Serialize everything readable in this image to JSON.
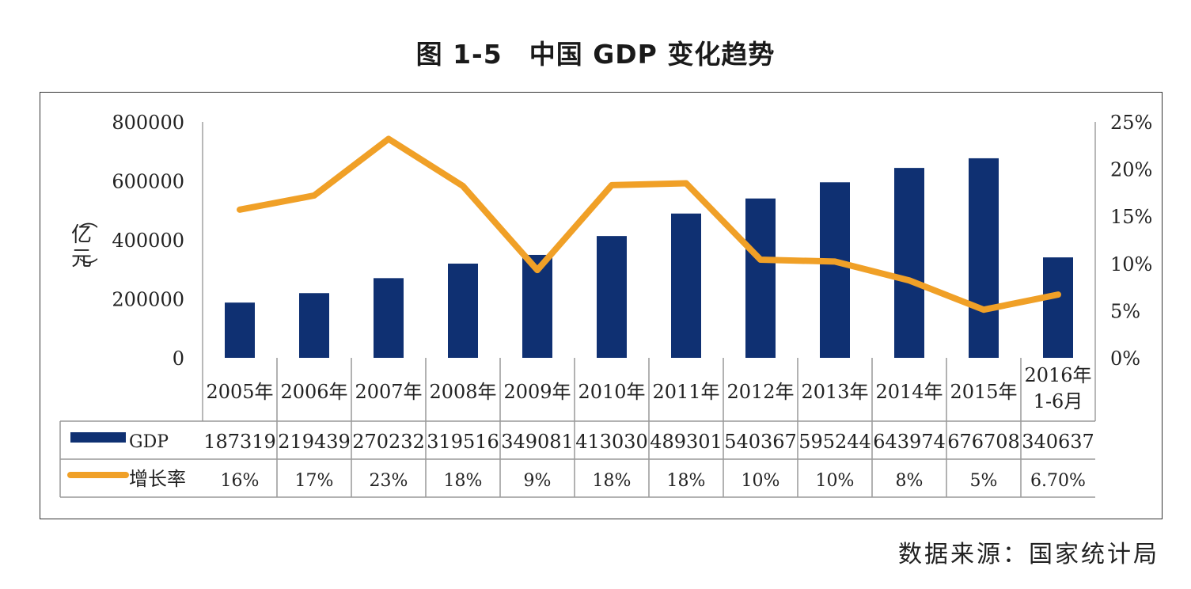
{
  "title": "图 1-5　中国 GDP 变化趋势",
  "source": "数据来源：国家统计局",
  "chart_data": {
    "type": "bar",
    "title": "图 1-5　中国 GDP 变化趋势",
    "xlabel": "",
    "ylabel": "（亿元）",
    "ylim": [
      0,
      800000
    ],
    "y2lim": [
      0,
      25
    ],
    "y_ticks": [
      "0",
      "200000",
      "400000",
      "600000",
      "800000"
    ],
    "y2_ticks": [
      "0%",
      "5%",
      "10%",
      "15%",
      "20%",
      "25%"
    ],
    "categories": [
      [
        "2005年"
      ],
      [
        "2006年"
      ],
      [
        "2007年"
      ],
      [
        "2008年"
      ],
      [
        "2009年"
      ],
      [
        "2010年"
      ],
      [
        "2011年"
      ],
      [
        "2012年"
      ],
      [
        "2013年"
      ],
      [
        "2014年"
      ],
      [
        "2015年"
      ],
      [
        "2016年",
        "1-6月"
      ]
    ],
    "series": [
      {
        "name": "GDP",
        "type": "bar",
        "axis": "left",
        "color": "#0f3072",
        "values": [
          187319,
          219439,
          270232,
          319516,
          349081,
          413030,
          489301,
          540367,
          595244,
          643974,
          676708,
          340637
        ],
        "labels": [
          "187319",
          "219439",
          "270232",
          "319516",
          "349081",
          "413030",
          "489301",
          "540367",
          "595244",
          "643974",
          "676708",
          "340637"
        ]
      },
      {
        "name": "增长率",
        "type": "line",
        "axis": "right",
        "color": "#f0a027",
        "values": [
          15.7,
          17.2,
          23.2,
          18.2,
          9.3,
          18.3,
          18.5,
          10.4,
          10.2,
          8.2,
          5.1,
          6.7
        ],
        "labels": [
          "16%",
          "17%",
          "23%",
          "18%",
          "9%",
          "18%",
          "18%",
          "10%",
          "10%",
          "8%",
          "5%",
          "6.70%"
        ]
      }
    ]
  }
}
